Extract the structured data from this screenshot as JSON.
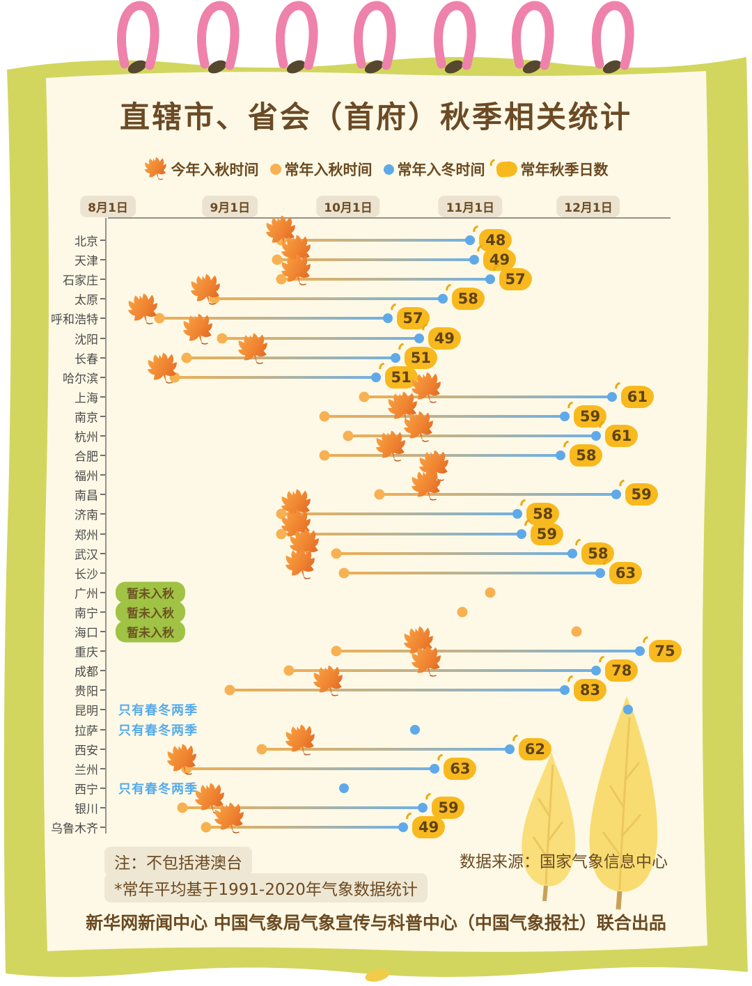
{
  "page": {
    "title": "直辖市、省会（首府）秋季相关统计",
    "note_line1": "注：不包括港澳台",
    "note_line2": "*常年平均基于1991-2020年气象数据统计",
    "source": "数据来源：国家气象信息中心",
    "footer": "新华网新闻中心 中国气象局气象宣传与科普中心（中国气象报社）联合出品"
  },
  "legend": {
    "items": [
      {
        "icon": "maple-leaf-icon",
        "label": "今年入秋时间"
      },
      {
        "icon": "orange-dot-icon",
        "label": "常年入秋时间"
      },
      {
        "icon": "blue-dot-icon",
        "label": "常年入冬时间"
      },
      {
        "icon": "yellow-leaf-icon",
        "label": "常年秋季日数"
      }
    ]
  },
  "status_labels": {
    "not_yet_autumn": "暂未入秋",
    "only_spring_winter": "只有春冬两季"
  },
  "colors": {
    "frame_green": "#d2d65f",
    "page_cream": "#fdf9e6",
    "title_brown": "#6b4a26",
    "orange_dot": "#f7b152",
    "blue_dot": "#5fa9e9",
    "badge_yellow": "#f8b91e",
    "green_pill": "#a0c345",
    "blue_note_text": "#56aaec",
    "ring_pink": "#ee82aa",
    "tree_yellow": "#f8dc72"
  },
  "chart_data": {
    "type": "scatter",
    "title": "直辖市、省会（首府）秋季相关统计",
    "x_axis": {
      "unit": "日期",
      "tick_labels": [
        "8月1日",
        "9月1日",
        "10月1日",
        "11月1日",
        "12月1日"
      ],
      "tick_days_from_aug1": [
        0,
        31,
        61,
        92,
        122
      ]
    },
    "series_legend": [
      "今年入秋时间",
      "常年入秋时间",
      "常年入冬时间",
      "常年秋季日数"
    ],
    "cities": [
      {
        "name": "北京",
        "this_year_autumn": "9月14日",
        "normal_autumn": "9月14日",
        "normal_winter": "11月1日",
        "autumn_days": 48,
        "note": null,
        "d_leaf": 44,
        "d_autumn": 44,
        "d_winter": 92
      },
      {
        "name": "天津",
        "this_year_autumn": "9月18日",
        "normal_autumn": "9月13日",
        "normal_winter": "11月2日",
        "autumn_days": 49,
        "note": null,
        "d_leaf": 48,
        "d_autumn": 43,
        "d_winter": 93
      },
      {
        "name": "石家庄",
        "this_year_autumn": "9月18日",
        "normal_autumn": "9月14日",
        "normal_winter": "11月6日",
        "autumn_days": 57,
        "note": null,
        "d_leaf": 48,
        "d_autumn": 44,
        "d_winter": 97
      },
      {
        "name": "太原",
        "this_year_autumn": "8月26日",
        "normal_autumn": "8月28日",
        "normal_winter": "10月25日",
        "autumn_days": 58,
        "note": null,
        "d_leaf": 25,
        "d_autumn": 27,
        "d_winter": 85
      },
      {
        "name": "呼和浩特",
        "this_year_autumn": "8月10日",
        "normal_autumn": "8月14日",
        "normal_winter": "10月11日",
        "autumn_days": 57,
        "note": null,
        "d_leaf": 9,
        "d_autumn": 13,
        "d_winter": 71
      },
      {
        "name": "沈阳",
        "this_year_autumn": "8月24日",
        "normal_autumn": "8月30日",
        "normal_winter": "10月19日",
        "autumn_days": 49,
        "note": null,
        "d_leaf": 23,
        "d_autumn": 29,
        "d_winter": 79
      },
      {
        "name": "长春",
        "this_year_autumn": "9月7日",
        "normal_autumn": "8月21日",
        "normal_winter": "10月13日",
        "autumn_days": 51,
        "note": null,
        "d_leaf": 37,
        "d_autumn": 20,
        "d_winter": 73
      },
      {
        "name": "哈尔滨",
        "this_year_autumn": "8月15日",
        "normal_autumn": "8月18日",
        "normal_winter": "10月8日",
        "autumn_days": 51,
        "note": null,
        "d_leaf": 14,
        "d_autumn": 17,
        "d_winter": 68
      },
      {
        "name": "上海",
        "this_year_autumn": "10月21日",
        "normal_autumn": "10月5日",
        "normal_winter": "12月7日",
        "autumn_days": 61,
        "note": null,
        "d_leaf": 81,
        "d_autumn": 65,
        "d_winter": 128
      },
      {
        "name": "南京",
        "this_year_autumn": "10月15日",
        "normal_autumn": "9月25日",
        "normal_winter": "11月25日",
        "autumn_days": 59,
        "note": null,
        "d_leaf": 75,
        "d_autumn": 55,
        "d_winter": 116
      },
      {
        "name": "杭州",
        "this_year_autumn": "10月19日",
        "normal_autumn": "10月1日",
        "normal_winter": "12月3日",
        "autumn_days": 61,
        "note": null,
        "d_leaf": 79,
        "d_autumn": 61,
        "d_winter": 124
      },
      {
        "name": "合肥",
        "this_year_autumn": "10月12日",
        "normal_autumn": "9月25日",
        "normal_winter": "11月24日",
        "autumn_days": 58,
        "note": null,
        "d_leaf": 72,
        "d_autumn": 55,
        "d_winter": 115
      },
      {
        "name": "福州",
        "this_year_autumn": "10月23日",
        "normal_autumn": null,
        "normal_winter": null,
        "autumn_days": null,
        "note": null,
        "d_leaf": 83,
        "d_autumn": null,
        "d_winter": null
      },
      {
        "name": "南昌",
        "this_year_autumn": "10月21日",
        "normal_autumn": "10月9日",
        "normal_winter": "12月8日",
        "autumn_days": 59,
        "note": null,
        "d_leaf": 81,
        "d_autumn": 69,
        "d_winter": 129
      },
      {
        "name": "济南",
        "this_year_autumn": "9月18日",
        "normal_autumn": "9月14日",
        "normal_winter": "11月13日",
        "autumn_days": 58,
        "note": null,
        "d_leaf": 48,
        "d_autumn": 44,
        "d_winter": 104
      },
      {
        "name": "郑州",
        "this_year_autumn": "9月18日",
        "normal_autumn": "9月14日",
        "normal_winter": "11月14日",
        "autumn_days": 59,
        "note": null,
        "d_leaf": 48,
        "d_autumn": 44,
        "d_winter": 105
      },
      {
        "name": "武汉",
        "this_year_autumn": "9月20日",
        "normal_autumn": "9月28日",
        "normal_winter": "11月27日",
        "autumn_days": 58,
        "note": null,
        "d_leaf": 50,
        "d_autumn": 58,
        "d_winter": 118
      },
      {
        "name": "长沙",
        "this_year_autumn": "9月19日",
        "normal_autumn": "9月30日",
        "normal_winter": "12月4日",
        "autumn_days": 63,
        "note": null,
        "d_leaf": 49,
        "d_autumn": 60,
        "d_winter": 125
      },
      {
        "name": "广州",
        "this_year_autumn": null,
        "normal_autumn": "11月6日",
        "normal_winter": null,
        "autumn_days": null,
        "note": "暂未入秋",
        "d_leaf": null,
        "d_autumn": 97,
        "d_winter": null
      },
      {
        "name": "南宁",
        "this_year_autumn": null,
        "normal_autumn": "10月30日",
        "normal_winter": null,
        "autumn_days": null,
        "note": "暂未入秋",
        "d_leaf": null,
        "d_autumn": 90,
        "d_winter": null
      },
      {
        "name": "海口",
        "this_year_autumn": null,
        "normal_autumn": "11月28日",
        "normal_winter": null,
        "autumn_days": null,
        "note": "暂未入秋",
        "d_leaf": null,
        "d_autumn": 119,
        "d_winter": null
      },
      {
        "name": "重庆",
        "this_year_autumn": "10月19日",
        "normal_autumn": "9月28日",
        "normal_winter": "12月14日",
        "autumn_days": 75,
        "note": null,
        "d_leaf": 79,
        "d_autumn": 58,
        "d_winter": 135
      },
      {
        "name": "成都",
        "this_year_autumn": "10月21日",
        "normal_autumn": "9月16日",
        "normal_winter": "12月3日",
        "autumn_days": 78,
        "note": null,
        "d_leaf": 81,
        "d_autumn": 46,
        "d_winter": 124
      },
      {
        "name": "贵阳",
        "this_year_autumn": "9月26日",
        "normal_autumn": "9月1日",
        "normal_winter": "11月24日",
        "autumn_days": 83,
        "note": null,
        "d_leaf": 56,
        "d_autumn": 31,
        "d_winter": 116
      },
      {
        "name": "昆明",
        "this_year_autumn": null,
        "normal_autumn": null,
        "normal_winter": "12月11日",
        "autumn_days": null,
        "note": "只有春冬两季",
        "d_leaf": null,
        "d_autumn": null,
        "d_winter": 132
      },
      {
        "name": "拉萨",
        "this_year_autumn": null,
        "normal_autumn": null,
        "normal_winter": "10月18日",
        "autumn_days": null,
        "note": "只有春冬两季",
        "d_leaf": null,
        "d_autumn": null,
        "d_winter": 78
      },
      {
        "name": "西安",
        "this_year_autumn": "9月19日",
        "normal_autumn": "9月9日",
        "normal_winter": "11月11日",
        "autumn_days": 62,
        "note": null,
        "d_leaf": 49,
        "d_autumn": 39,
        "d_winter": 102
      },
      {
        "name": "兰州",
        "this_year_autumn": "8月20日",
        "normal_autumn": "8月21日",
        "normal_winter": "10月23日",
        "autumn_days": 63,
        "note": null,
        "d_leaf": 19,
        "d_autumn": 20,
        "d_winter": 83
      },
      {
        "name": "西宁",
        "this_year_autumn": null,
        "normal_autumn": null,
        "normal_winter": "9月30日",
        "autumn_days": null,
        "note": "只有春冬两季",
        "d_leaf": null,
        "d_autumn": null,
        "d_winter": 60
      },
      {
        "name": "银川",
        "this_year_autumn": "8月27日",
        "normal_autumn": "8月20日",
        "normal_winter": "10月20日",
        "autumn_days": 59,
        "note": null,
        "d_leaf": 26,
        "d_autumn": 19,
        "d_winter": 80
      },
      {
        "name": "乌鲁木齐",
        "this_year_autumn": "9月1日",
        "normal_autumn": "8月26日",
        "normal_winter": "10月15日",
        "autumn_days": 49,
        "note": null,
        "d_leaf": 31,
        "d_autumn": 25,
        "d_winter": 75
      }
    ]
  }
}
